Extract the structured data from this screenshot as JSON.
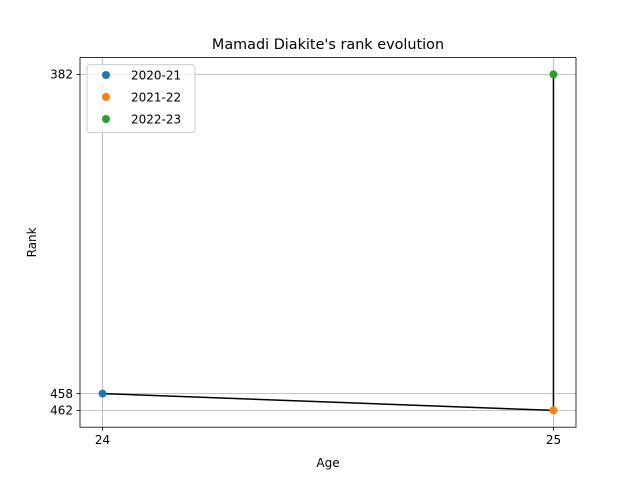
{
  "chart_data": {
    "type": "line",
    "title": "Mamadi Diakite's rank evolution",
    "xlabel": "Age",
    "ylabel": "Rank",
    "x_ticks": [
      "24",
      "25"
    ],
    "y_ticks": [
      "382",
      "458",
      "462"
    ],
    "xlim": [
      23.95,
      25.05
    ],
    "ylim": [
      466,
      378
    ],
    "y_inverted": true,
    "grid": true,
    "legend_position": "upper-left",
    "line_color": "#000000",
    "series": [
      {
        "name": "2020-21",
        "x": 24,
        "y": 458,
        "color": "#1f77b4"
      },
      {
        "name": "2021-22",
        "x": 25,
        "y": 462,
        "color": "#ff7f0e"
      },
      {
        "name": "2022-23",
        "x": 25,
        "y": 382,
        "color": "#2ca02c"
      }
    ]
  }
}
